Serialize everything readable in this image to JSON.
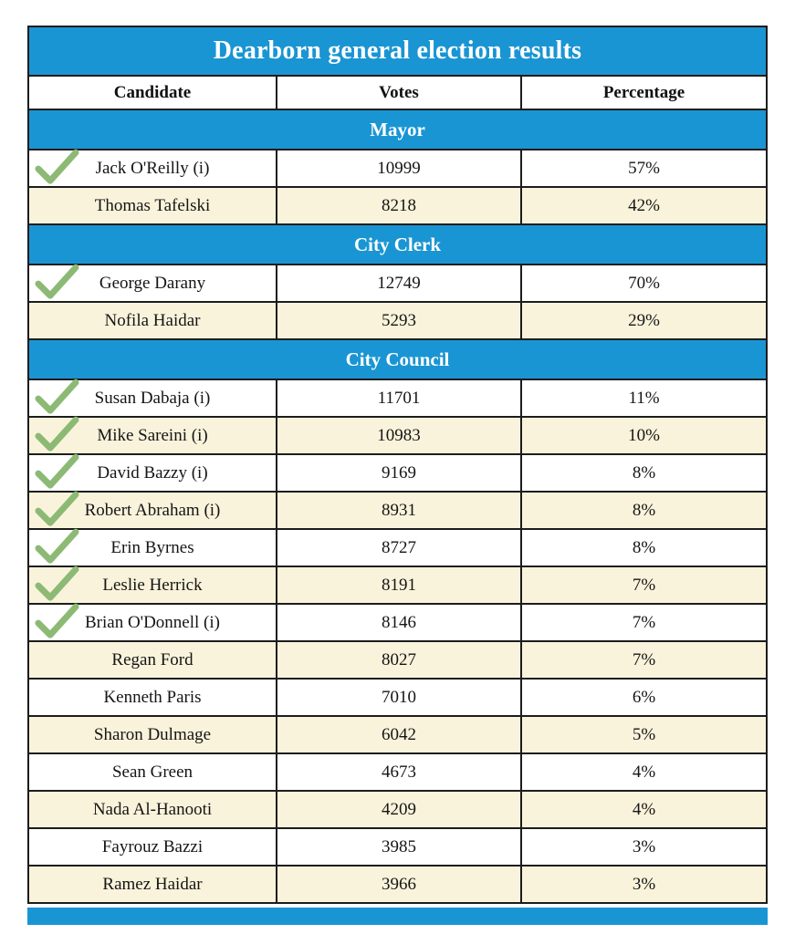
{
  "chart_data": {
    "type": "table",
    "title": "Dearborn general election results",
    "columns": [
      "Candidate",
      "Votes",
      "Percentage"
    ],
    "winner_marker": "green check",
    "sections": [
      {
        "label": "Mayor",
        "rows": [
          {
            "candidate": "Jack O'Reilly (i)",
            "votes": "10999",
            "percentage": "57%",
            "winner": true
          },
          {
            "candidate": "Thomas Tafelski",
            "votes": "8218",
            "percentage": "42%",
            "winner": false
          }
        ]
      },
      {
        "label": "City Clerk",
        "rows": [
          {
            "candidate": "George Darany",
            "votes": "12749",
            "percentage": "70%",
            "winner": true
          },
          {
            "candidate": "Nofila Haidar",
            "votes": "5293",
            "percentage": "29%",
            "winner": false
          }
        ]
      },
      {
        "label": "City Council",
        "rows": [
          {
            "candidate": "Susan Dabaja (i)",
            "votes": "11701",
            "percentage": "11%",
            "winner": true
          },
          {
            "candidate": "Mike Sareini (i)",
            "votes": "10983",
            "percentage": "10%",
            "winner": true
          },
          {
            "candidate": "David Bazzy (i)",
            "votes": "9169",
            "percentage": "8%",
            "winner": true
          },
          {
            "candidate": "Robert Abraham (i)",
            "votes": "8931",
            "percentage": "8%",
            "winner": true
          },
          {
            "candidate": "Erin Byrnes",
            "votes": "8727",
            "percentage": "8%",
            "winner": true
          },
          {
            "candidate": "Leslie Herrick",
            "votes": "8191",
            "percentage": "7%",
            "winner": true
          },
          {
            "candidate": "Brian O'Donnell (i)",
            "votes": "8146",
            "percentage": "7%",
            "winner": true
          },
          {
            "candidate": "Regan Ford",
            "votes": "8027",
            "percentage": "7%",
            "winner": false
          },
          {
            "candidate": "Kenneth Paris",
            "votes": "7010",
            "percentage": "6%",
            "winner": false
          },
          {
            "candidate": "Sharon Dulmage",
            "votes": "6042",
            "percentage": "5%",
            "winner": false
          },
          {
            "candidate": "Sean Green",
            "votes": "4673",
            "percentage": "4%",
            "winner": false
          },
          {
            "candidate": "Nada Al-Hanooti",
            "votes": "4209",
            "percentage": "4%",
            "winner": false
          },
          {
            "candidate": "Fayrouz Bazzi",
            "votes": "3985",
            "percentage": "3%",
            "winner": false
          },
          {
            "candidate": "Ramez Haidar",
            "votes": "3966",
            "percentage": "3%",
            "winner": false
          }
        ]
      }
    ]
  },
  "colors": {
    "band_blue": "#1a95d3",
    "row_cream": "#faf3db",
    "row_white": "#ffffff",
    "border_dark": "#1c1c1c",
    "check_green": "#8cba75",
    "text_dark": "#151515",
    "band_text": "#ffffff"
  }
}
